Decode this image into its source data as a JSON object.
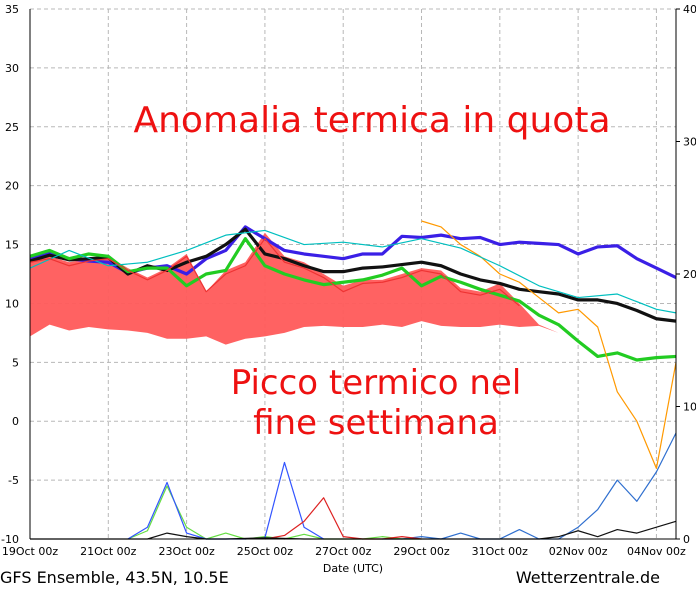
{
  "chart_data": {
    "type": "line",
    "title": "",
    "xlabel": "Date (UTC)",
    "ylabel": "",
    "ylim": [
      -10,
      35
    ],
    "y2lim": [
      0,
      40
    ],
    "grid": true,
    "x_ticks": [
      "19Oct 00z",
      "21Oct 00z",
      "23Oct 00z",
      "25Oct 00z",
      "27Oct 00z",
      "29Oct 00z",
      "31Oct 00z",
      "02Nov 00z",
      "04Nov 00z"
    ],
    "y_ticks": [
      35,
      30,
      25,
      20,
      15,
      10,
      5,
      0,
      -5,
      -10
    ],
    "y2_ticks": [
      40,
      30,
      20,
      10,
      0
    ],
    "annotations": [
      "Anomalia termica in quota",
      "Picco termico nel",
      "fine settimana"
    ],
    "footer_left": "GFS Ensemble, 43.5N, 10.5E",
    "footer_right": "Wetterzentrale.de",
    "band": {
      "color": "#ff5a5a",
      "days": [
        0,
        0.5,
        1,
        1.5,
        2,
        2.5,
        3,
        3.5,
        4,
        4.5,
        5,
        5.5,
        6,
        6.5,
        7,
        7.5,
        8,
        8.5,
        9,
        9.5,
        10,
        10.5,
        11,
        11.5,
        12,
        12.5,
        13,
        13.5
      ],
      "upper": [
        13.5,
        14,
        13.5,
        13.8,
        14,
        13,
        12.2,
        13,
        14.2,
        11,
        12.8,
        13.5,
        16,
        14,
        13.5,
        12.5,
        11.5,
        12,
        12,
        12.5,
        13,
        12.8,
        11.3,
        11,
        11.7,
        10,
        8.2,
        7.5
      ],
      "lower": [
        7.2,
        8.2,
        7.7,
        8,
        7.8,
        7.7,
        7.5,
        7,
        7,
        7.2,
        6.5,
        7,
        7.2,
        7.5,
        8,
        8.1,
        8,
        8,
        8.2,
        8,
        8.5,
        8.1,
        8,
        8,
        8.2,
        8,
        8.1,
        7.5
      ]
    },
    "series": [
      {
        "color": "#3a1fe6",
        "days": [
          0,
          0.5,
          1,
          1.5,
          2,
          2.5,
          3,
          3.5,
          4,
          4.5,
          5,
          5.5,
          6,
          6.5,
          7,
          7.5,
          8,
          8.5,
          9,
          9.5,
          10,
          10.5,
          11,
          11.5,
          12,
          12.5,
          13,
          13.5,
          14,
          14.5,
          15,
          15.5,
          16,
          16.5
        ],
        "values": [
          13.8,
          14.3,
          13.8,
          13.6,
          13.5,
          12.6,
          13,
          13.2,
          12.5,
          13.8,
          14.5,
          16.5,
          15.5,
          14.5,
          14.2,
          14,
          13.8,
          14.2,
          14.2,
          15.7,
          15.6,
          15.8,
          15.5,
          15.6,
          15,
          15.2,
          15.1,
          15,
          14.2,
          14.8,
          14.9,
          13.8,
          13,
          12.2
        ]
      },
      {
        "color": "#111111",
        "days": [
          0,
          0.5,
          1,
          1.5,
          2,
          2.5,
          3,
          3.5,
          4,
          4.5,
          5,
          5.5,
          6,
          6.5,
          7,
          7.5,
          8,
          8.5,
          9,
          9.5,
          10,
          10.5,
          11,
          11.5,
          12,
          12.5,
          13,
          13.5,
          14,
          14.5,
          15,
          15.5,
          16,
          16.5
        ],
        "values": [
          13.6,
          14.1,
          13.7,
          13.8,
          13.9,
          12.5,
          13.2,
          12.8,
          13.5,
          14,
          15,
          16.3,
          14.2,
          13.8,
          13.2,
          12.7,
          12.7,
          13,
          13.1,
          13.3,
          13.5,
          13.2,
          12.5,
          12,
          11.7,
          11.2,
          11,
          10.8,
          10.3,
          10.3,
          10,
          9.4,
          8.7,
          8.5
        ]
      },
      {
        "color": "#22cc22",
        "days": [
          0,
          0.5,
          1,
          1.5,
          2,
          2.5,
          3,
          3.5,
          4,
          4.5,
          5,
          5.5,
          6,
          6.5,
          7,
          7.5,
          8,
          8.5,
          9,
          9.5,
          10,
          10.5,
          11,
          11.5,
          12,
          12.5,
          13,
          13.5,
          14,
          14.5,
          15,
          15.5,
          16,
          16.5
        ],
        "values": [
          14,
          14.5,
          13.8,
          14.2,
          14,
          12.7,
          13,
          13,
          11.5,
          12.5,
          12.8,
          15.5,
          13.2,
          12.5,
          12,
          11.6,
          11.8,
          12,
          12.4,
          13,
          11.5,
          12.3,
          11.8,
          11.2,
          10.7,
          10.2,
          9,
          8.2,
          6.8,
          5.5,
          5.8,
          5.2,
          5.4,
          5.5
        ]
      },
      {
        "color": "#ff9900",
        "days": [
          10,
          10.5,
          11,
          11.5,
          12,
          12.5,
          13,
          13.5,
          14,
          14.5,
          15,
          15.5,
          16,
          16.5
        ],
        "values": [
          17,
          16.5,
          15,
          14,
          12.5,
          11.8,
          10.5,
          9.2,
          9.5,
          8,
          2.5,
          0,
          -4,
          5
        ]
      },
      {
        "color": "#00bfbf",
        "days": [
          0,
          1,
          2,
          3,
          4,
          5,
          6,
          7,
          8,
          9,
          10,
          11,
          12,
          13,
          14,
          15,
          16,
          16.5
        ],
        "values": [
          13,
          14.5,
          13.2,
          13.5,
          14.5,
          15.8,
          16.2,
          15,
          15.2,
          14.8,
          15.5,
          14.7,
          13.2,
          11.5,
          10.5,
          10.8,
          9.5,
          9.2
        ]
      },
      {
        "color": "#2f6fcf",
        "days": [
          9,
          9.5,
          10,
          10.5,
          11,
          11.5,
          12,
          12.5,
          13,
          13.5,
          14,
          14.5,
          15,
          15.5,
          16,
          16.5
        ],
        "values": [
          -10,
          -10,
          -9.8,
          -10,
          -9.5,
          -10,
          -10,
          -9.2,
          -10,
          -10,
          -9,
          -7.5,
          -5,
          -6.8,
          -4.3,
          -1
        ]
      },
      {
        "color": "#66dd44",
        "days": [
          2.5,
          3,
          3.5,
          4,
          4.5,
          5,
          5.5,
          6,
          6.5,
          7,
          7.5,
          8,
          8.5,
          9,
          9.5,
          10
        ],
        "values": [
          -10,
          -9.3,
          -5.5,
          -9,
          -10,
          -9.5,
          -10,
          -9.8,
          -10,
          -9.6,
          -10,
          -10,
          -10,
          -9.8,
          -10,
          -10
        ]
      },
      {
        "color": "#3355ff",
        "days": [
          2.5,
          3,
          3.5,
          4,
          4.5,
          5,
          5.5,
          6,
          6.5,
          7,
          7.5
        ],
        "values": [
          -10,
          -9,
          -5.2,
          -9.5,
          -10,
          -10,
          -10,
          -9.9,
          -3.5,
          -9,
          -10
        ]
      },
      {
        "color": "#dd2222",
        "days": [
          6,
          6.5,
          7,
          7.5,
          8,
          8.5,
          9,
          9.5,
          10
        ],
        "values": [
          -10,
          -9.7,
          -8.5,
          -6.5,
          -9.8,
          -10,
          -10,
          -9.8,
          -10
        ]
      },
      {
        "color": "#111111",
        "days": [
          0,
          1,
          2,
          3,
          3.5,
          4,
          4.5,
          5,
          6,
          7,
          8,
          9,
          10,
          11,
          12,
          13,
          13.5,
          14,
          14.5,
          15,
          15.5,
          16,
          16.5
        ],
        "values": [
          -10,
          -10,
          -10,
          -10,
          -9.5,
          -9.8,
          -10,
          -10,
          -9.9,
          -10,
          -10,
          -10,
          -10,
          -10,
          -10,
          -10,
          -9.8,
          -9.3,
          -9.8,
          -9.2,
          -9.5,
          -9,
          -8.5
        ]
      },
      {
        "color": "#ee3333",
        "days": [
          0,
          0.5,
          1,
          1.5,
          2,
          2.5,
          3,
          3.5,
          4,
          4.5,
          5,
          5.5,
          6,
          6.5,
          7,
          7.5,
          8,
          8.5,
          9,
          9.5,
          10,
          10.5,
          11,
          11.5,
          12,
          12.5
        ],
        "values": [
          13.5,
          13.8,
          13.2,
          13.6,
          13.8,
          12.8,
          12,
          12.8,
          14,
          11,
          12.5,
          13.2,
          15.5,
          13.5,
          13,
          12.2,
          11,
          11.7,
          11.8,
          12.2,
          12.8,
          12.5,
          11,
          10.7,
          11.2,
          9.8
        ]
      }
    ]
  }
}
